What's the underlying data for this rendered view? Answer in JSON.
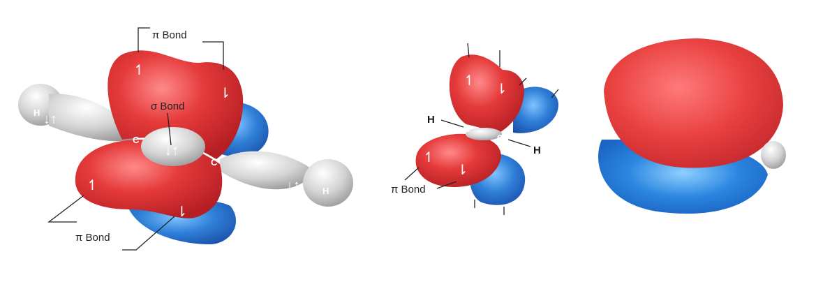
{
  "labels": {
    "pi_bond": "π Bond",
    "sigma_bond": "σ Bond"
  },
  "atoms": {
    "carbon": "C",
    "hydrogen": "H"
  },
  "spins": {
    "up": "↿",
    "down": "⇂",
    "pair": "↓↑"
  },
  "colors": {
    "pi_lobe_red": "#e53a3a",
    "pi_lobe_blue": "#2f7fd8",
    "sigma_gray": "#d4d4d4"
  }
}
